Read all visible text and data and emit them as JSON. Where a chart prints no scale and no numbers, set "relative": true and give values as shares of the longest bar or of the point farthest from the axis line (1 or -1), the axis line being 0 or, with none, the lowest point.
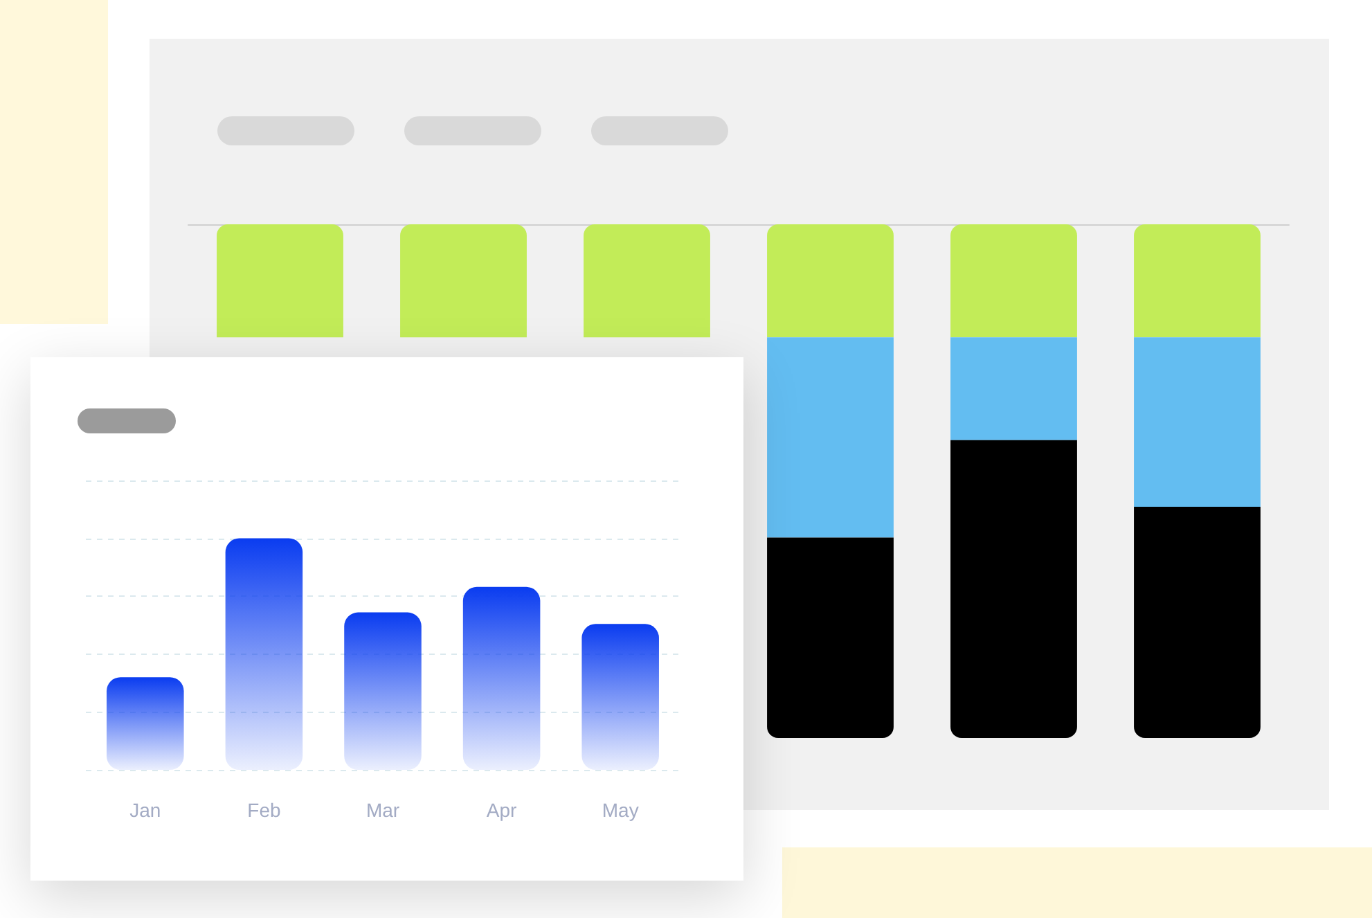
{
  "chart_data": [
    {
      "type": "bar",
      "stacked": true,
      "relative": true,
      "categories": [
        null,
        null,
        null,
        null,
        null,
        null
      ],
      "series": [
        {
          "color": "#c2ec58",
          "values": [
            -0.22,
            -0.22,
            -0.22,
            -0.22,
            -0.22,
            -0.22
          ]
        },
        {
          "color": "#63bdf1",
          "values": [
            null,
            null,
            null,
            -0.39,
            -0.2,
            -0.33
          ]
        },
        {
          "color": "#000000",
          "values": [
            null,
            null,
            null,
            -0.39,
            -0.58,
            -0.45
          ]
        }
      ]
    },
    {
      "type": "bar",
      "relative": true,
      "categories": [
        "Jan",
        "Feb",
        "Mar",
        "Apr",
        "May"
      ],
      "values": [
        0.4,
        1,
        0.68,
        0.79,
        0.63
      ],
      "color": "#0a3cf0",
      "grid": "y"
    }
  ]
}
